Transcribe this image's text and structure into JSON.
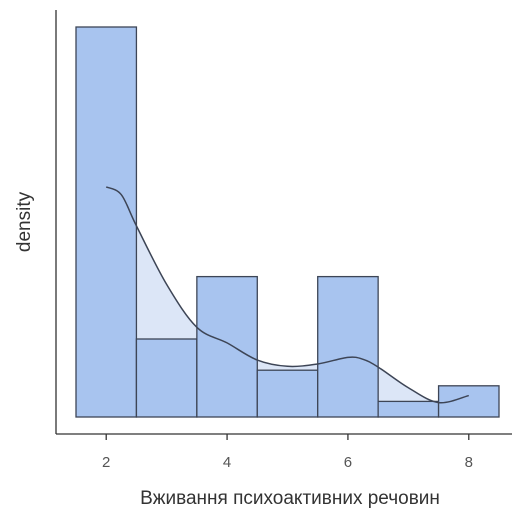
{
  "chart_data": {
    "type": "histogram",
    "xlabel": "Вживання психоактивних речовин",
    "ylabel": "density",
    "xlim": [
      1.5,
      8.5
    ],
    "ylim": [
      0,
      1
    ],
    "x_ticks": [
      {
        "value": 2,
        "label": "2"
      },
      {
        "value": 4,
        "label": "4"
      },
      {
        "value": 6,
        "label": "6"
      },
      {
        "value": 8,
        "label": "8"
      }
    ],
    "y_ticks_shown": false,
    "grid": false,
    "bins": [
      {
        "x0": 1.5,
        "x1": 2.5,
        "height": 1.0
      },
      {
        "x0": 2.5,
        "x1": 3.5,
        "height": 0.2
      },
      {
        "x0": 3.5,
        "x1": 4.5,
        "height": 0.36
      },
      {
        "x0": 4.5,
        "x1": 5.5,
        "height": 0.12
      },
      {
        "x0": 5.5,
        "x1": 6.5,
        "height": 0.36
      },
      {
        "x0": 6.5,
        "x1": 7.5,
        "height": 0.04
      },
      {
        "x0": 7.5,
        "x1": 8.5,
        "height": 0.08
      }
    ],
    "density_curve": {
      "x": [
        2.0,
        2.25,
        2.5,
        3.0,
        3.5,
        4.0,
        4.5,
        5.0,
        5.5,
        6.0,
        6.25,
        6.5,
        7.0,
        7.5,
        8.0
      ],
      "y": [
        0.59,
        0.57,
        0.49,
        0.34,
        0.23,
        0.19,
        0.146,
        0.13,
        0.136,
        0.153,
        0.148,
        0.128,
        0.075,
        0.037,
        0.055
      ]
    },
    "colors": {
      "bar_fill": "#a8c4ef",
      "bar_stroke": "#3d4556",
      "density_fill": "#dce6f7",
      "density_line": "#3d4556",
      "axis": "#333333"
    }
  }
}
